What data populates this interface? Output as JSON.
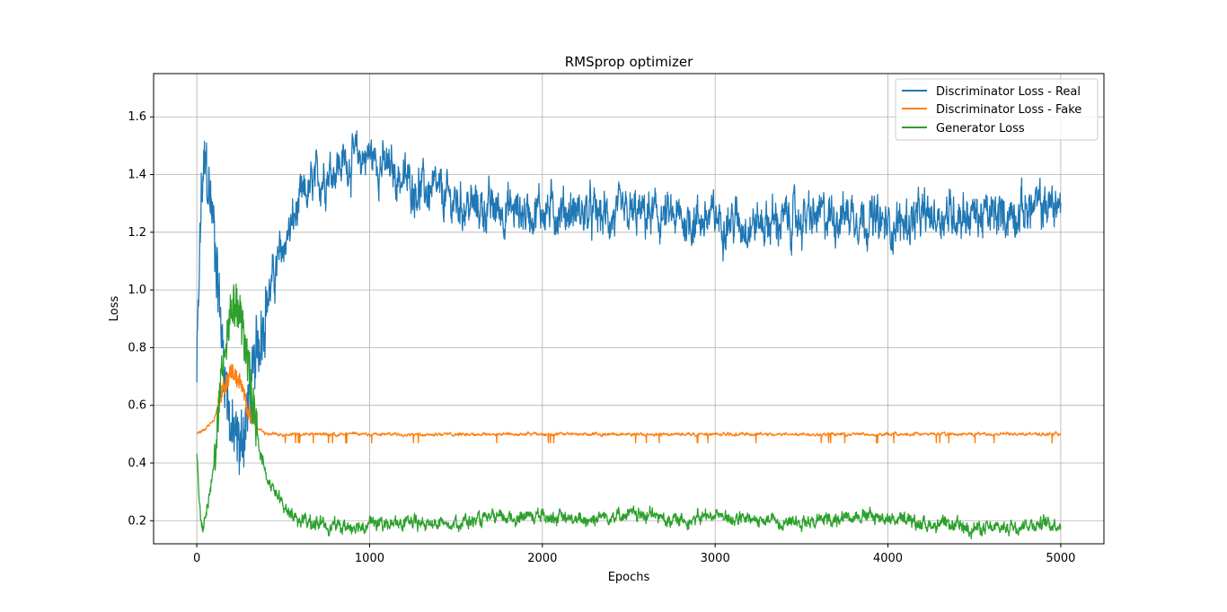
{
  "chart_data": {
    "type": "line",
    "title": "RMSprop optimizer",
    "xlabel": "Epochs",
    "ylabel": "Loss",
    "xlim": [
      -250,
      5250
    ],
    "ylim": [
      0.12,
      1.75
    ],
    "xticks": [
      0,
      1000,
      2000,
      3000,
      4000,
      5000
    ],
    "yticks": [
      0.2,
      0.4,
      0.6,
      0.8,
      1.0,
      1.2,
      1.4,
      1.6
    ],
    "ytick_labels": [
      "0.2",
      "0.4",
      "0.6",
      "0.8",
      "1.0",
      "1.2",
      "1.4",
      "1.6"
    ],
    "grid": true,
    "legend_position": "top-right",
    "series": [
      {
        "name": "Discriminator Loss - Real",
        "color": "#1f77b4",
        "x": [
          0,
          25,
          50,
          100,
          150,
          200,
          250,
          300,
          350,
          400,
          500,
          600,
          700,
          800,
          900,
          1000,
          1100,
          1200,
          1300,
          1400,
          1500,
          1600,
          1700,
          1800,
          1900,
          2000,
          2200,
          2400,
          2600,
          2800,
          3000,
          3200,
          3400,
          3600,
          3800,
          4000,
          4200,
          4400,
          4600,
          4800,
          5000
        ],
        "values": [
          0.7,
          1.3,
          1.45,
          1.2,
          0.8,
          0.5,
          0.45,
          0.6,
          0.8,
          0.95,
          1.15,
          1.3,
          1.38,
          1.43,
          1.45,
          1.47,
          1.42,
          1.38,
          1.35,
          1.33,
          1.3,
          1.29,
          1.28,
          1.28,
          1.27,
          1.28,
          1.27,
          1.25,
          1.26,
          1.24,
          1.25,
          1.23,
          1.24,
          1.25,
          1.27,
          1.22,
          1.25,
          1.27,
          1.25,
          1.28,
          1.3
        ],
        "noise": 0.06
      },
      {
        "name": "Discriminator Loss - Fake",
        "color": "#ff7f0e",
        "x": [
          0,
          50,
          100,
          150,
          200,
          250,
          300,
          350,
          400,
          450,
          500,
          5000
        ],
        "values": [
          0.5,
          0.52,
          0.55,
          0.65,
          0.72,
          0.68,
          0.58,
          0.52,
          0.5,
          0.5,
          0.5,
          0.5
        ],
        "noise": 0.004
      },
      {
        "name": "Generator Loss",
        "color": "#2ca02c",
        "x": [
          0,
          25,
          50,
          100,
          150,
          200,
          250,
          300,
          350,
          400,
          500,
          600,
          700,
          800,
          900,
          1000,
          1200,
          1400,
          1600,
          1800,
          2000,
          2200,
          2400,
          2600,
          2800,
          3000,
          3200,
          3400,
          3600,
          3800,
          4000,
          4200,
          4400,
          4600,
          4800,
          5000
        ],
        "values": [
          0.45,
          0.17,
          0.2,
          0.4,
          0.75,
          0.95,
          0.92,
          0.72,
          0.5,
          0.35,
          0.25,
          0.2,
          0.19,
          0.18,
          0.18,
          0.19,
          0.19,
          0.19,
          0.2,
          0.21,
          0.22,
          0.2,
          0.22,
          0.22,
          0.2,
          0.22,
          0.2,
          0.2,
          0.2,
          0.22,
          0.21,
          0.19,
          0.18,
          0.17,
          0.19,
          0.19
        ],
        "noise": 0.018
      }
    ]
  }
}
